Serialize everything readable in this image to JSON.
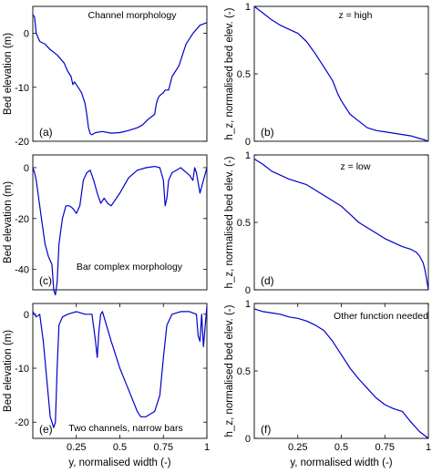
{
  "colors": {
    "series": "#0000cc",
    "axes": "#000000",
    "background": "#ffffff"
  },
  "chart_data": [
    {
      "panel": "(a)",
      "type": "line",
      "annotation": "Channel morphology",
      "xlabel": "",
      "ylabel": "Bed elevation (m)",
      "xlim": [
        0,
        1
      ],
      "ylim": [
        -20,
        5
      ],
      "xticks": [],
      "yticks": [
        -20,
        -10,
        0
      ],
      "grid": false,
      "x": [
        0,
        0.01,
        0.02,
        0.04,
        0.07,
        0.1,
        0.14,
        0.18,
        0.2,
        0.22,
        0.23,
        0.24,
        0.26,
        0.28,
        0.3,
        0.31,
        0.32,
        0.33,
        0.34,
        0.36,
        0.4,
        0.45,
        0.5,
        0.55,
        0.6,
        0.63,
        0.66,
        0.68,
        0.7,
        0.71,
        0.72,
        0.73,
        0.75,
        0.76,
        0.78,
        0.8,
        0.84,
        0.88,
        0.92,
        0.96,
        1.0
      ],
      "y": [
        3.5,
        3.0,
        0.0,
        -1.5,
        -2.0,
        -3.0,
        -4.0,
        -5.5,
        -7.0,
        -8.0,
        -9.5,
        -9.0,
        -10.0,
        -11.0,
        -13.0,
        -15.0,
        -17.5,
        -18.6,
        -18.8,
        -18.4,
        -18.2,
        -18.5,
        -18.4,
        -18.0,
        -17.5,
        -17.0,
        -16.0,
        -15.5,
        -15.0,
        -13.0,
        -12.0,
        -11.5,
        -11.0,
        -10.5,
        -10.5,
        -8.0,
        -6.0,
        -2.0,
        0.0,
        1.5,
        2.0
      ]
    },
    {
      "panel": "(b)",
      "type": "line",
      "annotation": "z = high",
      "xlabel": "",
      "ylabel": "h_z, normalised bed elev. (-)",
      "xlim": [
        0,
        1
      ],
      "ylim": [
        0,
        1
      ],
      "xticks": [],
      "yticks": [
        0,
        0.5,
        1
      ],
      "grid": false,
      "x": [
        0,
        0.02,
        0.05,
        0.1,
        0.15,
        0.2,
        0.25,
        0.3,
        0.35,
        0.4,
        0.45,
        0.48,
        0.5,
        0.55,
        0.6,
        0.65,
        0.7,
        0.75,
        0.8,
        0.85,
        0.9,
        0.95,
        0.98,
        1.0
      ],
      "y": [
        1.0,
        0.98,
        0.95,
        0.9,
        0.86,
        0.83,
        0.8,
        0.74,
        0.65,
        0.55,
        0.45,
        0.35,
        0.3,
        0.2,
        0.15,
        0.1,
        0.08,
        0.07,
        0.06,
        0.05,
        0.04,
        0.02,
        0.01,
        0.0
      ]
    },
    {
      "panel": "(c)",
      "type": "line",
      "annotation": "Bar complex morphology",
      "xlabel": "",
      "ylabel": "Bed elevation (m)",
      "xlim": [
        0,
        1
      ],
      "ylim": [
        -48,
        5
      ],
      "xticks": [],
      "yticks": [
        -40,
        -20,
        0
      ],
      "grid": false,
      "x": [
        0,
        0.01,
        0.02,
        0.03,
        0.05,
        0.07,
        0.09,
        0.11,
        0.12,
        0.13,
        0.14,
        0.15,
        0.17,
        0.19,
        0.21,
        0.23,
        0.25,
        0.27,
        0.29,
        0.31,
        0.33,
        0.35,
        0.37,
        0.39,
        0.41,
        0.43,
        0.45,
        0.5,
        0.55,
        0.6,
        0.65,
        0.7,
        0.73,
        0.75,
        0.76,
        0.77,
        0.78,
        0.8,
        0.85,
        0.9,
        0.92,
        0.93,
        0.94,
        0.96,
        0.98,
        1.0
      ],
      "y": [
        0,
        -2,
        -5,
        -10,
        -20,
        -30,
        -35,
        -38,
        -48,
        -50,
        -45,
        -30,
        -20,
        -15,
        -15,
        -16,
        -18,
        -15,
        -5,
        -2,
        -1,
        -5,
        -10,
        -14,
        -12,
        -14,
        -15,
        -10,
        -4,
        -1,
        0,
        0.5,
        0,
        -5,
        -15,
        -12,
        -5,
        -2,
        0,
        -3,
        -5,
        0,
        -2,
        -10,
        -5,
        0
      ]
    },
    {
      "panel": "(d)",
      "type": "line",
      "annotation": "z = low",
      "xlabel": "",
      "ylabel": "h_z, normalised bed elev. (-)",
      "xlim": [
        0,
        1
      ],
      "ylim": [
        0,
        1
      ],
      "xticks": [],
      "yticks": [
        0,
        0.5,
        1
      ],
      "grid": false,
      "x": [
        0,
        0.05,
        0.1,
        0.15,
        0.2,
        0.25,
        0.3,
        0.35,
        0.4,
        0.45,
        0.5,
        0.55,
        0.6,
        0.65,
        0.7,
        0.75,
        0.8,
        0.85,
        0.9,
        0.93,
        0.95,
        0.97,
        0.98,
        0.99,
        1.0
      ],
      "y": [
        0.97,
        0.93,
        0.88,
        0.85,
        0.82,
        0.8,
        0.78,
        0.74,
        0.7,
        0.66,
        0.62,
        0.56,
        0.5,
        0.46,
        0.42,
        0.38,
        0.35,
        0.32,
        0.3,
        0.28,
        0.25,
        0.2,
        0.15,
        0.08,
        0.0
      ]
    },
    {
      "panel": "(e)",
      "type": "line",
      "annotation": "Two channels, narrow bars",
      "xlabel": "y, normalised width (-)",
      "ylabel": "Bed elevation (m)",
      "xlim": [
        0,
        1
      ],
      "ylim": [
        -23,
        2
      ],
      "xticks": [
        0.25,
        0.5,
        0.75,
        1
      ],
      "xticklabels": [
        "0.25",
        "0.5",
        "0.75",
        "1"
      ],
      "yticks": [
        -20,
        -10,
        0
      ],
      "grid": false,
      "x": [
        0,
        0.02,
        0.04,
        0.06,
        0.08,
        0.1,
        0.11,
        0.12,
        0.13,
        0.14,
        0.15,
        0.17,
        0.2,
        0.25,
        0.3,
        0.34,
        0.36,
        0.37,
        0.38,
        0.39,
        0.4,
        0.45,
        0.5,
        0.55,
        0.6,
        0.62,
        0.65,
        0.7,
        0.73,
        0.75,
        0.77,
        0.8,
        0.85,
        0.9,
        0.94,
        0.95,
        0.96,
        0.97,
        0.98,
        1.0
      ],
      "y": [
        0.5,
        -0.5,
        0,
        -5,
        -12,
        -19,
        -20,
        -21,
        -20,
        -10,
        -2,
        -0.5,
        0,
        0.5,
        0,
        0,
        -5,
        -8,
        -3,
        0,
        0.5,
        -5,
        -10,
        -14,
        -18,
        -19,
        -19,
        -18,
        -15,
        -8,
        -2,
        0,
        0.5,
        0.5,
        0,
        -4,
        -5,
        0,
        -6,
        1.5
      ]
    },
    {
      "panel": "(f)",
      "type": "line",
      "annotation": "Other function needed",
      "xlabel": "y, normalised width (-)",
      "ylabel": "h_z, normalised bed elev. (-)",
      "xlim": [
        0,
        1
      ],
      "ylim": [
        0,
        1
      ],
      "xticks": [
        0.25,
        0.5,
        0.75,
        1
      ],
      "xticklabels": [
        "0.25",
        "0.5",
        "0.75",
        "1"
      ],
      "yticks": [
        0,
        0.5,
        1
      ],
      "grid": false,
      "x": [
        0,
        0.05,
        0.1,
        0.15,
        0.2,
        0.25,
        0.3,
        0.35,
        0.4,
        0.45,
        0.5,
        0.55,
        0.6,
        0.65,
        0.7,
        0.75,
        0.8,
        0.85,
        0.9,
        0.95,
        1.0
      ],
      "y": [
        0.96,
        0.94,
        0.93,
        0.92,
        0.9,
        0.89,
        0.87,
        0.84,
        0.8,
        0.72,
        0.62,
        0.52,
        0.44,
        0.37,
        0.3,
        0.25,
        0.22,
        0.2,
        0.12,
        0.05,
        0.0
      ]
    }
  ]
}
